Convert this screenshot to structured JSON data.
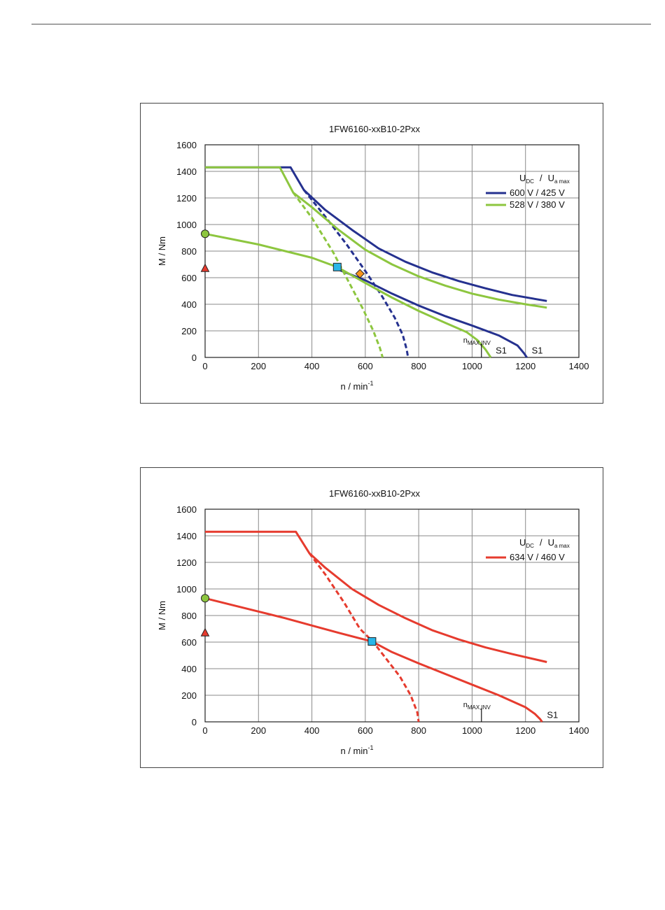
{
  "chart_data": [
    {
      "type": "line",
      "title": "1FW6160-xxB10-2Pxx",
      "xlabel": "n / min",
      "xlabel_sup": "-1",
      "ylabel": "M / Nm",
      "xlim": [
        0,
        1400
      ],
      "ylim": [
        0,
        1600
      ],
      "xticks": [
        "0",
        "200",
        "400",
        "600",
        "800",
        "1000",
        "1200",
        "1400"
      ],
      "yticks": [
        "0",
        "200",
        "400",
        "600",
        "800",
        "1000",
        "1200",
        "1400",
        "1600"
      ],
      "grid": true,
      "legend_position": "top-right",
      "legend_header": {
        "u": "U",
        "dc": "DC",
        "slash": "/",
        "ua": "U",
        "amax": "a max"
      },
      "series": [
        {
          "name": "600 V / 425 V",
          "color": "#25318f",
          "dashed_curve": [
            [
              370,
              1260
            ],
            [
              450,
              1060
            ],
            [
              530,
              850
            ],
            [
              600,
              650
            ],
            [
              660,
              470
            ],
            [
              710,
              300
            ],
            [
              740,
              170
            ],
            [
              755,
              60
            ],
            [
              760,
              0
            ]
          ],
          "upper_curve": [
            [
              0,
              1430
            ],
            [
              320,
              1430
            ],
            [
              370,
              1260
            ],
            [
              450,
              1110
            ],
            [
              550,
              960
            ],
            [
              650,
              820
            ],
            [
              750,
              720
            ],
            [
              850,
              640
            ],
            [
              950,
              575
            ],
            [
              1050,
              520
            ],
            [
              1150,
              470
            ],
            [
              1280,
              425
            ]
          ],
          "s1_curve": [
            [
              500,
              660
            ],
            [
              600,
              580
            ],
            [
              700,
              480
            ],
            [
              800,
              390
            ],
            [
              900,
              310
            ],
            [
              1000,
              240
            ],
            [
              1100,
              165
            ],
            [
              1170,
              90
            ],
            [
              1195,
              30
            ],
            [
              1205,
              0
            ]
          ]
        },
        {
          "name": "528 V / 380 V",
          "color": "#8dc63f",
          "dashed_curve": [
            [
              330,
              1240
            ],
            [
              400,
              1050
            ],
            [
              480,
              790
            ],
            [
              540,
              560
            ],
            [
              590,
              370
            ],
            [
              630,
              200
            ],
            [
              655,
              70
            ],
            [
              665,
              0
            ]
          ],
          "upper_curve": [
            [
              0,
              1430
            ],
            [
              280,
              1430
            ],
            [
              330,
              1240
            ],
            [
              400,
              1130
            ],
            [
              500,
              960
            ],
            [
              600,
              810
            ],
            [
              700,
              700
            ],
            [
              800,
              610
            ],
            [
              900,
              540
            ],
            [
              1000,
              480
            ],
            [
              1100,
              435
            ],
            [
              1200,
              400
            ],
            [
              1280,
              375
            ]
          ],
          "s1_curve": [
            [
              0,
              930
            ],
            [
              100,
              890
            ],
            [
              200,
              850
            ],
            [
              300,
              800
            ],
            [
              400,
              750
            ],
            [
              495,
              680
            ],
            [
              600,
              560
            ],
            [
              700,
              450
            ],
            [
              800,
              350
            ],
            [
              900,
              260
            ],
            [
              980,
              190
            ],
            [
              1020,
              130
            ],
            [
              1050,
              60
            ],
            [
              1070,
              0
            ]
          ]
        }
      ],
      "markers": {
        "circle": {
          "x": 0,
          "y": 930,
          "color": "#8dc63f"
        },
        "triangle": {
          "x": 0,
          "y": 670,
          "color": "#e63b2e"
        },
        "square": {
          "x": 495,
          "y": 680,
          "color": "#29b6e8"
        },
        "diamond": {
          "x": 580,
          "y": 630,
          "color": "#f7941d"
        }
      },
      "annotations": {
        "n_max": "n",
        "n_max_sub": "MAX,INV",
        "n_max_x": 1035,
        "s1_labels": [
          "S1",
          "S1"
        ]
      }
    },
    {
      "type": "line",
      "title": "1FW6160-xxB10-2Pxx",
      "xlabel": "n / min",
      "xlabel_sup": "-1",
      "ylabel": "M / Nm",
      "xlim": [
        0,
        1400
      ],
      "ylim": [
        0,
        1600
      ],
      "xticks": [
        "0",
        "200",
        "400",
        "600",
        "800",
        "1000",
        "1200",
        "1400"
      ],
      "yticks": [
        "0",
        "200",
        "400",
        "600",
        "800",
        "1000",
        "1200",
        "1400",
        "1600"
      ],
      "grid": true,
      "legend_position": "top-right",
      "legend_header": {
        "u": "U",
        "dc": "DC",
        "slash": "/",
        "ua": "U",
        "amax": "a max"
      },
      "series": [
        {
          "name": "634 V / 460 V",
          "color": "#e63b2e",
          "dashed_curve": [
            [
              390,
              1270
            ],
            [
              450,
              1110
            ],
            [
              520,
              900
            ],
            [
              580,
              700
            ],
            [
              630,
              600
            ],
            [
              680,
              470
            ],
            [
              730,
              340
            ],
            [
              770,
              200
            ],
            [
              795,
              70
            ],
            [
              800,
              0
            ]
          ],
          "upper_curve": [
            [
              0,
              1430
            ],
            [
              340,
              1430
            ],
            [
              390,
              1270
            ],
            [
              450,
              1160
            ],
            [
              550,
              1000
            ],
            [
              650,
              880
            ],
            [
              750,
              780
            ],
            [
              850,
              690
            ],
            [
              950,
              620
            ],
            [
              1050,
              560
            ],
            [
              1150,
              510
            ],
            [
              1280,
              450
            ]
          ],
          "s1_curve": [
            [
              0,
              930
            ],
            [
              100,
              880
            ],
            [
              200,
              830
            ],
            [
              300,
              780
            ],
            [
              400,
              725
            ],
            [
              500,
              670
            ],
            [
              625,
              605
            ],
            [
              700,
              525
            ],
            [
              800,
              440
            ],
            [
              900,
              360
            ],
            [
              1000,
              280
            ],
            [
              1100,
              200
            ],
            [
              1200,
              110
            ],
            [
              1235,
              60
            ],
            [
              1255,
              20
            ],
            [
              1262,
              0
            ]
          ]
        }
      ],
      "markers": {
        "circle": {
          "x": 0,
          "y": 930,
          "color": "#8dc63f"
        },
        "triangle": {
          "x": 0,
          "y": 670,
          "color": "#e63b2e"
        },
        "square": {
          "x": 625,
          "y": 605,
          "color": "#29b6e8"
        }
      },
      "annotations": {
        "n_max": "n",
        "n_max_sub": "MAX,INV",
        "n_max_x": 1035,
        "s1_labels": [
          "S1"
        ]
      }
    }
  ]
}
